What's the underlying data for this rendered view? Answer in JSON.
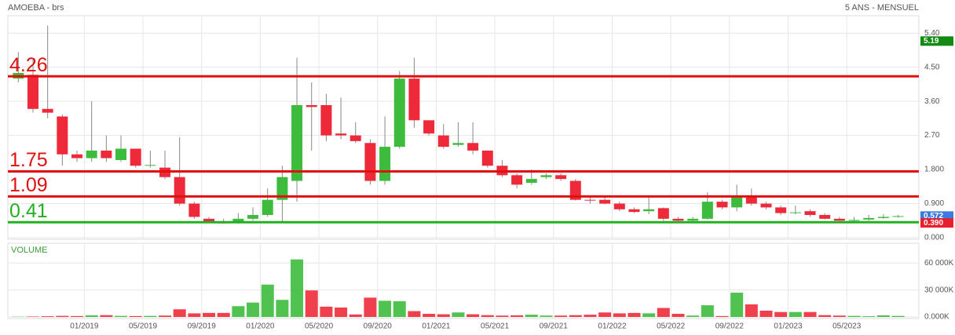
{
  "chart_data": {
    "type": "candlestick",
    "title": "AMOEBA - brs",
    "subtitle": "5 ANS - MENSUEL",
    "up_color": "#3dbb3d",
    "down_color": "#ee2a3a",
    "grid": true,
    "categories": [
      null,
      null,
      null,
      null,
      null,
      "01/2019",
      null,
      null,
      null,
      "05/2019",
      null,
      null,
      null,
      "09/2019",
      null,
      null,
      null,
      "01/2020",
      null,
      null,
      null,
      "05/2020",
      null,
      null,
      null,
      "09/2020",
      null,
      null,
      null,
      "01/2021",
      null,
      null,
      null,
      "05/2021",
      null,
      null,
      null,
      "09/2021",
      null,
      null,
      null,
      "01/2022",
      null,
      null,
      null,
      "05/2022",
      null,
      null,
      null,
      "09/2022",
      null,
      null,
      null,
      "01/2023",
      null,
      null,
      null,
      "05/2023",
      null,
      null,
      null
    ],
    "open": [
      4.2,
      4.3,
      3.4,
      3.2,
      2.2,
      2.1,
      2.3,
      2.05,
      2.35,
      1.9,
      1.85,
      1.6,
      0.9,
      0.5,
      0.4,
      0.4,
      0.5,
      0.6,
      1.0,
      1.5,
      3.5,
      3.5,
      2.75,
      2.7,
      2.5,
      1.5,
      2.4,
      4.2,
      3.1,
      2.7,
      2.45,
      2.5,
      2.3,
      1.9,
      1.65,
      1.45,
      1.6,
      1.65,
      1.5,
      1.0,
      1.0,
      0.9,
      0.75,
      0.7,
      0.78,
      0.5,
      0.45,
      0.5,
      0.95,
      0.8,
      1.1,
      0.9,
      0.8,
      0.65,
      0.7,
      0.6,
      0.5,
      0.45,
      0.48,
      0.52,
      0.55
    ],
    "high": [
      4.9,
      4.7,
      5.6,
      3.25,
      2.3,
      3.6,
      2.7,
      2.7,
      2.35,
      2.3,
      2.3,
      2.65,
      0.95,
      0.55,
      0.5,
      0.65,
      0.8,
      1.3,
      1.9,
      4.75,
      4.1,
      3.8,
      3.7,
      3.05,
      2.6,
      3.2,
      4.4,
      4.75,
      3.1,
      3.0,
      3.05,
      3.05,
      2.3,
      2.05,
      1.7,
      1.8,
      1.7,
      1.7,
      1.55,
      1.1,
      1.1,
      0.95,
      0.8,
      1.1,
      0.8,
      0.55,
      0.55,
      1.2,
      1.0,
      1.4,
      1.3,
      0.95,
      0.85,
      0.85,
      0.75,
      0.65,
      0.55,
      0.55,
      0.6,
      0.62,
      0.6
    ],
    "low": [
      4.1,
      3.3,
      3.15,
      1.9,
      2.0,
      2.0,
      2.0,
      2.0,
      1.85,
      1.85,
      1.55,
      0.85,
      0.5,
      0.4,
      0.37,
      0.37,
      0.45,
      0.55,
      0.4,
      0.95,
      2.3,
      2.55,
      2.6,
      2.5,
      1.4,
      1.4,
      2.35,
      2.9,
      2.7,
      2.35,
      2.4,
      2.2,
      1.85,
      1.6,
      1.3,
      1.4,
      1.55,
      1.5,
      0.98,
      0.9,
      0.88,
      0.7,
      0.65,
      0.62,
      0.45,
      0.43,
      0.42,
      0.48,
      0.75,
      0.7,
      0.85,
      0.75,
      0.6,
      0.62,
      0.55,
      0.48,
      0.42,
      0.43,
      0.45,
      0.5,
      0.53
    ],
    "close": [
      4.35,
      3.4,
      3.3,
      2.2,
      2.1,
      2.3,
      2.1,
      2.35,
      1.9,
      1.92,
      1.6,
      0.9,
      0.55,
      0.42,
      0.39,
      0.5,
      0.6,
      1.0,
      1.6,
      3.5,
      3.45,
      2.7,
      2.7,
      2.55,
      1.5,
      2.4,
      4.2,
      3.1,
      2.75,
      2.4,
      2.5,
      2.3,
      1.9,
      1.65,
      1.4,
      1.55,
      1.65,
      1.55,
      1.0,
      0.98,
      0.9,
      0.75,
      0.68,
      0.75,
      0.5,
      0.45,
      0.5,
      0.95,
      0.8,
      1.1,
      0.9,
      0.8,
      0.65,
      0.67,
      0.6,
      0.5,
      0.45,
      0.47,
      0.52,
      0.55,
      0.57
    ],
    "ylim": [
      0,
      5.86
    ],
    "yticks": [
      {
        "value": 5.4,
        "label": "5.40"
      },
      {
        "value": 4.5,
        "label": "4.50"
      },
      {
        "value": 3.6,
        "label": "3.60"
      },
      {
        "value": 2.7,
        "label": "2.70"
      },
      {
        "value": 1.8,
        "label": "1.800"
      },
      {
        "value": 0.9,
        "label": "0.900"
      },
      {
        "value": 0,
        "label": "0.000"
      }
    ],
    "levels": [
      {
        "value": 4.26,
        "color": "#e01010"
      },
      {
        "value": 1.75,
        "color": "#e01010"
      },
      {
        "value": 1.09,
        "color": "#e01010"
      },
      {
        "value": 0.41,
        "color": "#22b022"
      }
    ],
    "price_tags": [
      {
        "value": 5.19,
        "color": "#138a13"
      },
      {
        "value": 0.572,
        "color": "#3b7be0"
      },
      {
        "value": 0.39,
        "label": "0.390",
        "color": "#e8202e"
      }
    ],
    "volume": {
      "title": "VOLUME",
      "values": [
        300,
        500,
        800,
        1200,
        1000,
        1800,
        2000,
        1200,
        1000,
        1200,
        1500,
        8500,
        4000,
        4500,
        4500,
        12000,
        16000,
        36000,
        19000,
        64000,
        29500,
        11500,
        10500,
        2800,
        21500,
        18000,
        17500,
        6500,
        3500,
        3000,
        5000,
        3000,
        2000,
        1500,
        1800,
        2500,
        1500,
        1500,
        2000,
        2500,
        5000,
        4000,
        4500,
        4000,
        10000,
        3500,
        1500,
        13000,
        1000,
        27000,
        14000,
        7000,
        5500,
        5500,
        5500,
        2000,
        1500,
        1200,
        800,
        1800,
        1200
      ],
      "ylim": [
        0,
        82000
      ],
      "yticks": [
        {
          "value": 60000,
          "label": "60 000K"
        },
        {
          "value": 30000,
          "label": "30 000K"
        },
        {
          "value": 0,
          "label": "0.000K"
        }
      ]
    }
  }
}
